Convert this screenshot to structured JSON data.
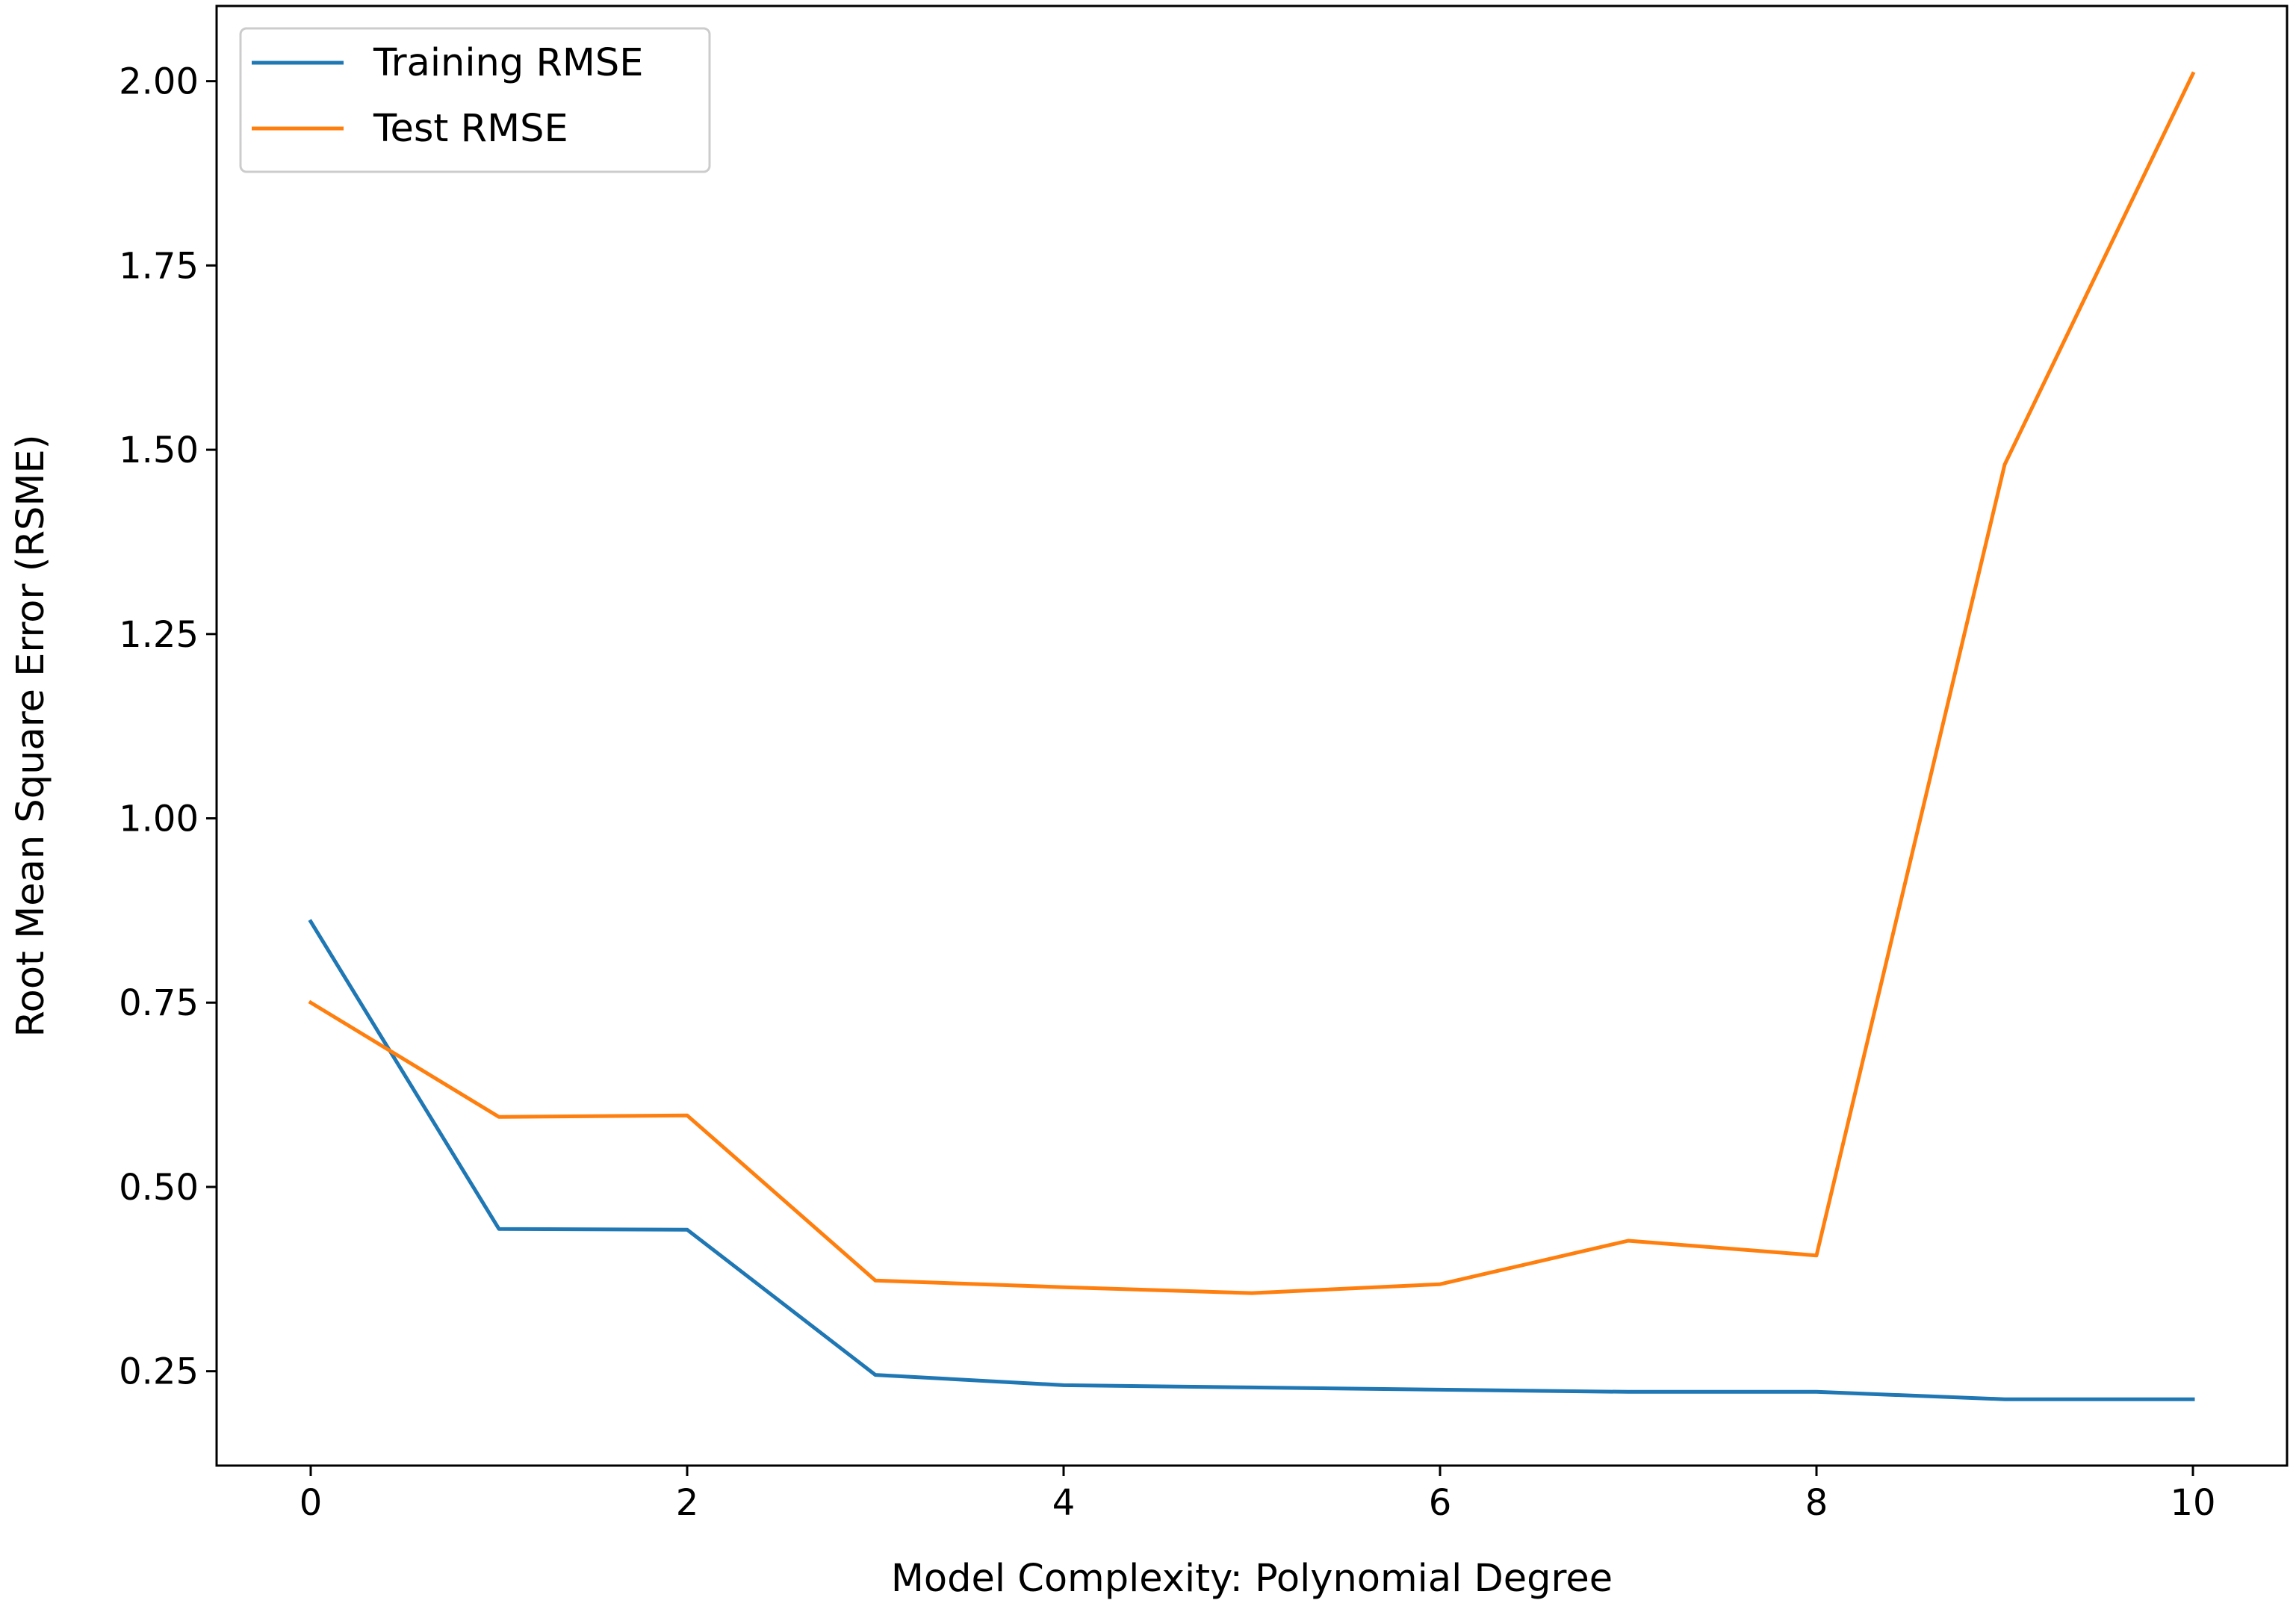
{
  "chart_data": {
    "type": "line",
    "title": "",
    "xlabel": "Model Complexity: Polynomial Degree",
    "ylabel": "Root Mean Square Error (RSME)",
    "xlim": [
      -0.5,
      10.5
    ],
    "ylim": [
      0.122,
      2.102
    ],
    "xticks": [
      0,
      2,
      4,
      6,
      8,
      10
    ],
    "xtick_labels": [
      "0",
      "2",
      "4",
      "6",
      "8",
      "10"
    ],
    "yticks": [
      0.25,
      0.5,
      0.75,
      1.0,
      1.25,
      1.5,
      1.75,
      2.0
    ],
    "ytick_labels": [
      "0.25",
      "0.50",
      "0.75",
      "1.00",
      "1.25",
      "1.50",
      "1.75",
      "2.00"
    ],
    "grid": false,
    "legend_position": "top-left",
    "x": [
      0,
      1,
      2,
      3,
      4,
      5,
      6,
      7,
      8,
      9,
      10
    ],
    "series": [
      {
        "name": "Training RMSE",
        "color": "#1f77b4",
        "values": [
          0.86,
          0.443,
          0.442,
          0.245,
          0.231,
          0.228,
          0.225,
          0.222,
          0.222,
          0.212,
          0.212
        ]
      },
      {
        "name": "Test RMSE",
        "color": "#ff7f0e",
        "values": [
          0.75,
          0.595,
          0.597,
          0.373,
          0.364,
          0.356,
          0.368,
          0.427,
          0.407,
          1.48,
          2.01
        ]
      }
    ]
  }
}
